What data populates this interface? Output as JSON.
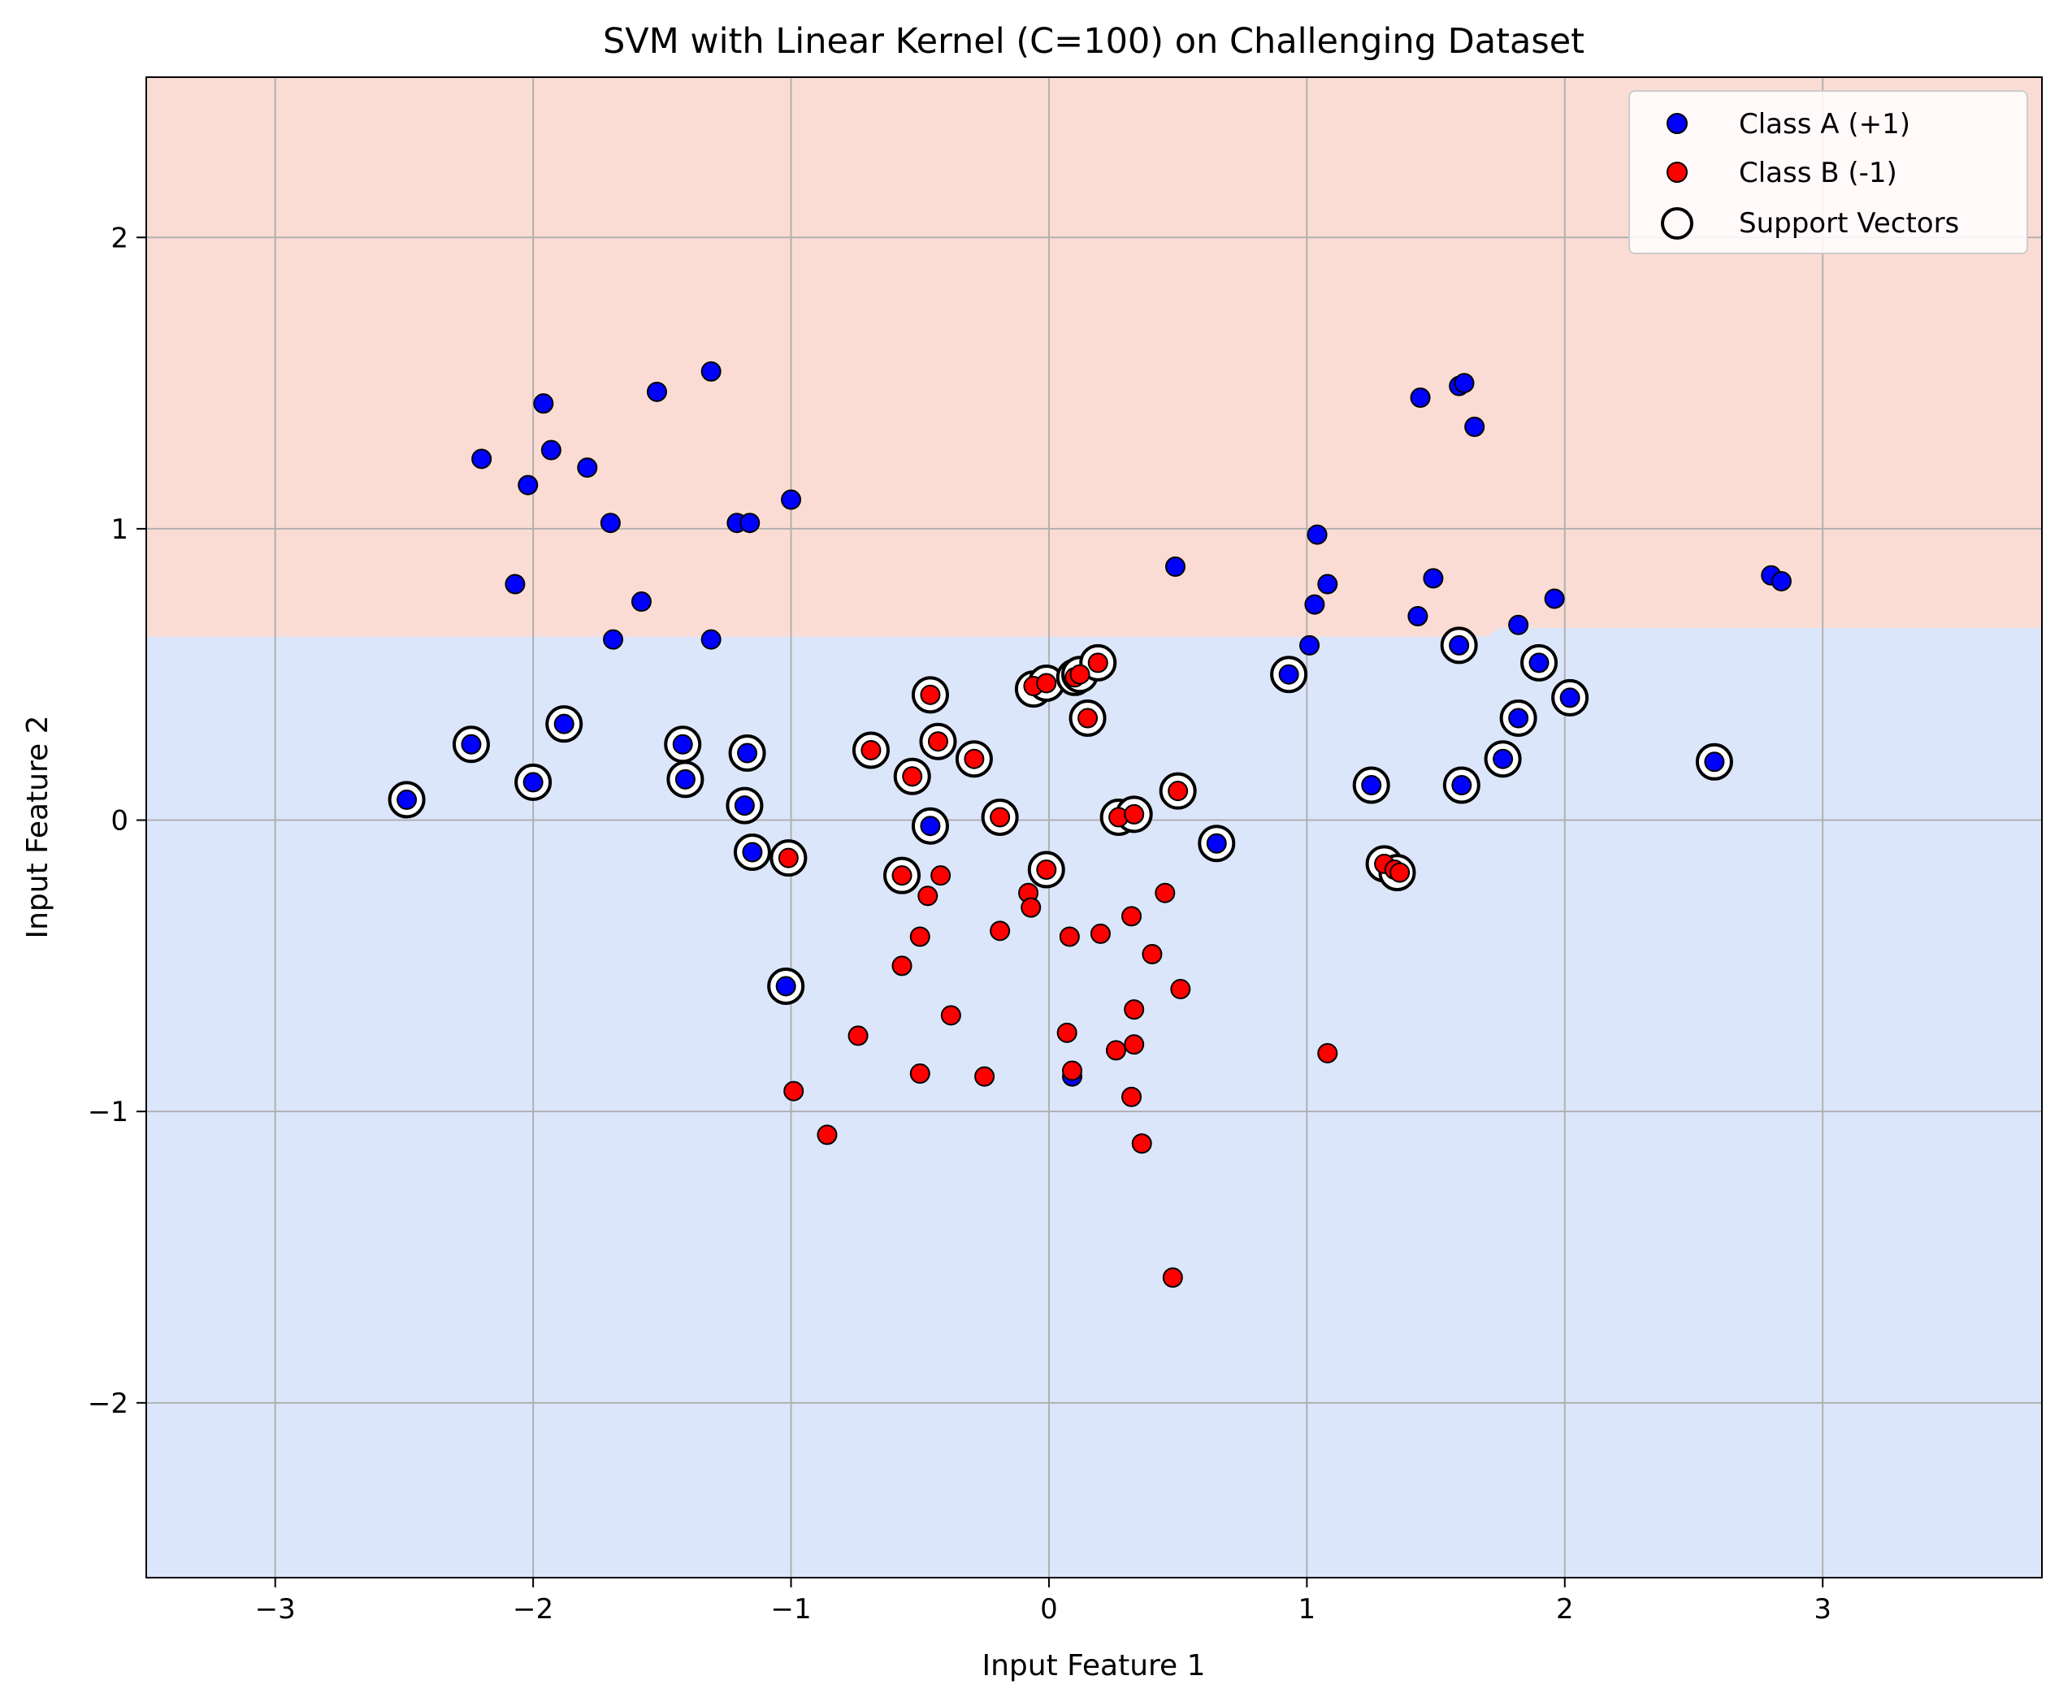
{
  "chart_data": {
    "type": "scatter",
    "title": "SVM with Linear Kernel (C=100) on Challenging Dataset",
    "xlabel": "Input Feature 1",
    "ylabel": "Input Feature 2",
    "xlim": [
      -3.5,
      3.85
    ],
    "ylim": [
      -2.6,
      2.55
    ],
    "xticks": [
      -3,
      -2,
      -1,
      0,
      1,
      2,
      3
    ],
    "yticks": [
      -2,
      -1,
      0,
      1,
      2
    ],
    "xtick_labels": [
      "−3",
      "−2",
      "−1",
      "0",
      "1",
      "2",
      "3"
    ],
    "ytick_labels": [
      "−2",
      "−1",
      "0",
      "1",
      "2"
    ],
    "grid": true,
    "legend_position": "top-right",
    "decision_regions": {
      "boundary": [
        [
          -3.5,
          0.63
        ],
        [
          1.7,
          0.63
        ],
        [
          1.75,
          0.66
        ],
        [
          3.85,
          0.66
        ]
      ],
      "upper_color": "#fbdcd4",
      "lower_color": "#dce6fb"
    },
    "colors": {
      "class_a": "#0000ff",
      "class_b": "#ff0000",
      "edge": "#000000"
    },
    "series": [
      {
        "name": "Class A (+1)",
        "color": "#0000ff",
        "points": [
          [
            -2.2,
            1.24
          ],
          [
            -1.96,
            1.43
          ],
          [
            -1.93,
            1.27
          ],
          [
            -2.02,
            1.15
          ],
          [
            -1.79,
            1.21
          ],
          [
            -1.7,
            1.02
          ],
          [
            -2.07,
            0.81
          ],
          [
            -1.52,
            1.47
          ],
          [
            -1.31,
            1.54
          ],
          [
            -1.21,
            1.02
          ],
          [
            -1.16,
            1.02
          ],
          [
            -1.0,
            1.1
          ],
          [
            -1.58,
            0.75
          ],
          [
            -1.69,
            0.62
          ],
          [
            -1.31,
            0.62
          ],
          [
            0.49,
            0.87
          ],
          [
            1.04,
            0.98
          ],
          [
            1.08,
            0.81
          ],
          [
            1.03,
            0.74
          ],
          [
            1.01,
            0.6
          ],
          [
            1.44,
            1.45
          ],
          [
            1.59,
            1.49
          ],
          [
            1.61,
            1.5
          ],
          [
            1.65,
            1.35
          ],
          [
            1.49,
            0.83
          ],
          [
            1.43,
            0.7
          ],
          [
            1.82,
            0.67
          ],
          [
            1.96,
            0.76
          ],
          [
            2.8,
            0.84
          ],
          [
            2.84,
            0.82
          ],
          [
            -2.49,
            0.07
          ],
          [
            -2.24,
            0.26
          ],
          [
            -2.0,
            0.13
          ],
          [
            -1.88,
            0.33
          ],
          [
            -1.42,
            0.26
          ],
          [
            -1.41,
            0.14
          ],
          [
            -1.17,
            0.23
          ],
          [
            -1.18,
            0.05
          ],
          [
            -1.15,
            -0.11
          ],
          [
            -1.02,
            -0.57
          ],
          [
            -0.46,
            -0.02
          ],
          [
            0.65,
            -0.08
          ],
          [
            0.93,
            0.5
          ],
          [
            1.25,
            0.12
          ],
          [
            1.59,
            0.6
          ],
          [
            1.6,
            0.12
          ],
          [
            1.76,
            0.21
          ],
          [
            1.82,
            0.35
          ],
          [
            1.9,
            0.54
          ],
          [
            2.02,
            0.42
          ],
          [
            2.58,
            0.2
          ],
          [
            0.09,
            -0.88
          ]
        ]
      },
      {
        "name": "Class B (-1)",
        "color": "#ff0000",
        "points": [
          [
            -0.69,
            0.24
          ],
          [
            -0.53,
            0.15
          ],
          [
            -0.46,
            0.43
          ],
          [
            -0.43,
            0.27
          ],
          [
            -0.29,
            0.21
          ],
          [
            -0.19,
            0.01
          ],
          [
            -0.06,
            0.46
          ],
          [
            -0.01,
            0.47
          ],
          [
            0.1,
            0.49
          ],
          [
            0.12,
            0.5
          ],
          [
            0.19,
            0.54
          ],
          [
            0.15,
            0.35
          ],
          [
            0.27,
            0.01
          ],
          [
            0.33,
            0.02
          ],
          [
            0.5,
            0.1
          ],
          [
            -1.01,
            -0.13
          ],
          [
            -0.57,
            -0.19
          ],
          [
            -0.01,
            -0.17
          ],
          [
            1.3,
            -0.15
          ],
          [
            1.34,
            -0.17
          ],
          [
            1.36,
            -0.18
          ],
          [
            -0.47,
            -0.26
          ],
          [
            -0.42,
            -0.19
          ],
          [
            -0.08,
            -0.25
          ],
          [
            -0.07,
            -0.3
          ],
          [
            -0.5,
            -0.4
          ],
          [
            -0.19,
            -0.38
          ],
          [
            0.08,
            -0.4
          ],
          [
            0.2,
            -0.39
          ],
          [
            0.32,
            -0.33
          ],
          [
            0.45,
            -0.25
          ],
          [
            -0.57,
            -0.5
          ],
          [
            0.4,
            -0.46
          ],
          [
            0.51,
            -0.58
          ],
          [
            -0.74,
            -0.74
          ],
          [
            -0.38,
            -0.67
          ],
          [
            0.07,
            -0.73
          ],
          [
            0.33,
            -0.65
          ],
          [
            0.26,
            -0.79
          ],
          [
            0.33,
            -0.77
          ],
          [
            -0.5,
            -0.87
          ],
          [
            -0.25,
            -0.88
          ],
          [
            0.09,
            -0.86
          ],
          [
            -0.99,
            -0.93
          ],
          [
            0.32,
            -0.95
          ],
          [
            -0.86,
            -1.08
          ],
          [
            0.36,
            -1.11
          ],
          [
            1.08,
            -0.8
          ],
          [
            0.48,
            -1.57
          ]
        ]
      },
      {
        "name": "Support Vectors",
        "color": "#000000",
        "points": [
          [
            -2.49,
            0.07
          ],
          [
            -2.24,
            0.26
          ],
          [
            -2.0,
            0.13
          ],
          [
            -1.88,
            0.33
          ],
          [
            -1.42,
            0.26
          ],
          [
            -1.41,
            0.14
          ],
          [
            -1.17,
            0.23
          ],
          [
            -1.18,
            0.05
          ],
          [
            -1.15,
            -0.11
          ],
          [
            -1.02,
            -0.57
          ],
          [
            -1.01,
            -0.13
          ],
          [
            -0.69,
            0.24
          ],
          [
            -0.53,
            0.15
          ],
          [
            -0.46,
            0.43
          ],
          [
            -0.43,
            0.27
          ],
          [
            -0.29,
            0.21
          ],
          [
            -0.19,
            0.01
          ],
          [
            -0.46,
            -0.02
          ],
          [
            -0.57,
            -0.19
          ],
          [
            -0.06,
            0.45
          ],
          [
            -0.01,
            0.47
          ],
          [
            0.1,
            0.49
          ],
          [
            0.12,
            0.5
          ],
          [
            0.19,
            0.54
          ],
          [
            0.15,
            0.35
          ],
          [
            -0.01,
            -0.17
          ],
          [
            0.27,
            0.01
          ],
          [
            0.33,
            0.02
          ],
          [
            0.5,
            0.1
          ],
          [
            0.65,
            -0.08
          ],
          [
            0.93,
            0.5
          ],
          [
            1.25,
            0.12
          ],
          [
            1.3,
            -0.15
          ],
          [
            1.35,
            -0.18
          ],
          [
            1.59,
            0.6
          ],
          [
            1.6,
            0.12
          ],
          [
            1.76,
            0.21
          ],
          [
            1.82,
            0.35
          ],
          [
            1.9,
            0.54
          ],
          [
            2.02,
            0.42
          ],
          [
            2.58,
            0.2
          ]
        ]
      }
    ]
  }
}
